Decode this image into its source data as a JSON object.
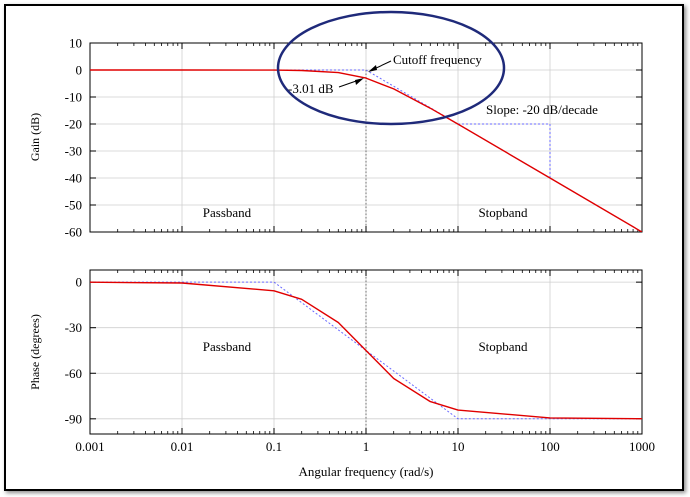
{
  "chart_data": [
    {
      "type": "line",
      "panel": "gain",
      "ylabel": "Gain (dB)",
      "xscale": "log",
      "xlim": [
        0.001,
        1000
      ],
      "ylim": [
        -60,
        10
      ],
      "yticks": [
        10,
        0,
        -10,
        -20,
        -30,
        -40,
        -50,
        -60
      ],
      "grid": true,
      "region_labels": [
        "Passband",
        "Stopband"
      ],
      "annotations": {
        "cutoff": "Cutoff frequency",
        "minus3db": "-3.01 dB",
        "slope": "Slope: -20 dB/decade"
      },
      "series": [
        {
          "style": "solid",
          "color": "#e00000",
          "x": [
            0.001,
            0.01,
            0.1,
            0.2,
            0.5,
            1,
            2,
            5,
            10,
            100,
            1000
          ],
          "y": [
            0,
            0,
            -0.04,
            -0.17,
            -0.97,
            -3.01,
            -6.99,
            -14.15,
            -20.04,
            -40,
            -60
          ]
        },
        {
          "style": "dotted",
          "color": "#6a6aff",
          "x": [
            0.001,
            1,
            1000
          ],
          "y": [
            0,
            0,
            -60
          ]
        }
      ],
      "slope_guide": {
        "x": [
          10,
          100,
          100
        ],
        "y": [
          -20,
          -20,
          -40
        ]
      }
    },
    {
      "type": "line",
      "panel": "phase",
      "ylabel": "Phase (degrees)",
      "xlabel": "Angular frequency (rad/s)",
      "xscale": "log",
      "xlim": [
        0.001,
        1000
      ],
      "xticks": [
        "0.001",
        "0.01",
        "0.1",
        "1",
        "10",
        "100",
        "1000"
      ],
      "ylim": [
        -100,
        8
      ],
      "yticks": [
        0,
        -30,
        -60,
        -90
      ],
      "grid": true,
      "region_labels": [
        "Passband",
        "Stopband"
      ],
      "series": [
        {
          "style": "solid",
          "color": "#e00000",
          "x": [
            0.001,
            0.01,
            0.1,
            0.2,
            0.5,
            1,
            2,
            5,
            10,
            100,
            1000
          ],
          "y": [
            -0.06,
            -0.57,
            -5.71,
            -11.31,
            -26.57,
            -45,
            -63.43,
            -78.69,
            -84.29,
            -89.43,
            -89.94
          ]
        },
        {
          "style": "dotted",
          "color": "#6a6aff",
          "x": [
            0.001,
            0.1,
            10,
            1000
          ],
          "y": [
            0,
            0,
            -90,
            -90
          ]
        }
      ]
    }
  ]
}
